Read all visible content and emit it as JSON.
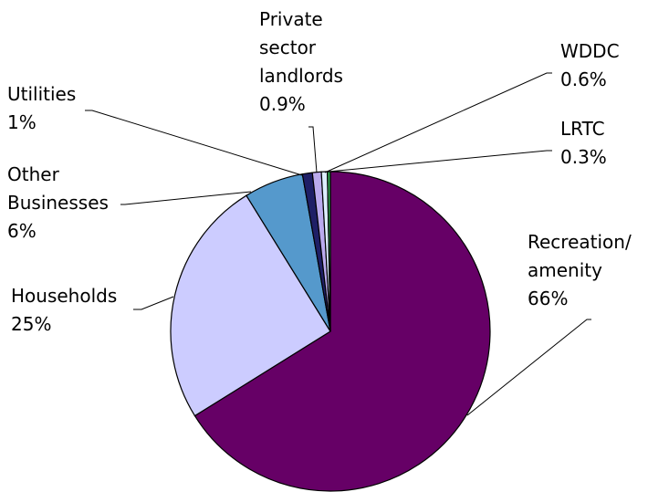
{
  "chart_data": {
    "type": "pie",
    "title": "",
    "slices": [
      {
        "name": "Recreation/ amenity",
        "lines": [
          "Recreation/",
          "amenity"
        ],
        "value": 66,
        "label": "66%",
        "color": "#660066"
      },
      {
        "name": "Households",
        "lines": [
          "Households"
        ],
        "value": 25,
        "label": "25%",
        "color": "#CCCCFF"
      },
      {
        "name": "Other Businesses",
        "lines": [
          "Other",
          "Businesses"
        ],
        "value": 6,
        "label": "6%",
        "color": "#5599CC"
      },
      {
        "name": "Utilities",
        "lines": [
          "Utilities"
        ],
        "value": 1,
        "label": "1%",
        "color": "#1F1F66"
      },
      {
        "name": "Private sector landlords",
        "lines": [
          "Private",
          "sector",
          "landlords"
        ],
        "value": 0.9,
        "label": "0.9%",
        "color": "#BBAAEE"
      },
      {
        "name": "WDDC",
        "lines": [
          "WDDC"
        ],
        "value": 0.6,
        "label": "0.6%",
        "color": "#DDEEFF"
      },
      {
        "name": "LRTC",
        "lines": [
          "LRTC"
        ],
        "value": 0.3,
        "label": "0.3%",
        "color": "#33AA55"
      }
    ],
    "start_angle_deg": 0,
    "direction": "clockwise",
    "legend": "none",
    "label_style": "outside with leader lines"
  }
}
